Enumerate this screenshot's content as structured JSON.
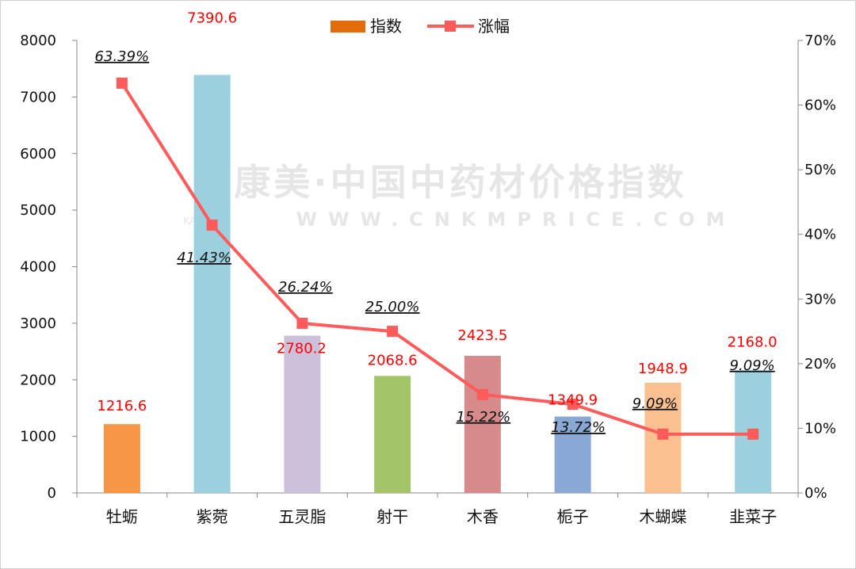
{
  "watermark": {
    "brand": "康美·中国中药材价格指数",
    "site": "WWW.CNKMPRICE.COM",
    "sub": "KANGMEI"
  },
  "chart_data": {
    "type": "bar",
    "categories": [
      "牡蛎",
      "紫菀",
      "五灵脂",
      "射干",
      "木香",
      "栀子",
      "木蝴蝶",
      "韭菜子"
    ],
    "series": [
      {
        "name": "指数",
        "type": "bar",
        "axis": "left",
        "values": [
          1216.6,
          7390.6,
          2780.2,
          2068.6,
          2423.5,
          1349.9,
          1948.9,
          2168.0
        ],
        "value_labels": [
          "1216.6",
          "7390.6",
          "2780.2",
          "2068.6",
          "2423.5",
          "1349.9",
          "1948.9",
          "2168.0"
        ],
        "colors": [
          "#f79646",
          "#9dd0de",
          "#ccc0da",
          "#a4c46a",
          "#d68a8a",
          "#8aa8d4",
          "#fac090",
          "#9dd0de"
        ],
        "legend_color": "#e36c0a",
        "label_color": "#ff0000"
      },
      {
        "name": "涨幅",
        "type": "line",
        "axis": "right",
        "values": [
          63.39,
          41.43,
          26.24,
          25.0,
          15.22,
          13.72,
          9.09,
          9.09
        ],
        "value_labels": [
          "63.39%",
          "41.43%",
          "26.24%",
          "25.00%",
          "15.22%",
          "13.72%",
          "9.09%",
          "9.09%"
        ],
        "color": "#ff5b5b"
      }
    ],
    "y_left": {
      "min": 0,
      "max": 8000,
      "ticks": [
        "0",
        "1000",
        "2000",
        "3000",
        "4000",
        "5000",
        "6000",
        "7000",
        "8000"
      ]
    },
    "y_right": {
      "min": 0,
      "max": 70,
      "ticks": [
        "0%",
        "10%",
        "20%",
        "30%",
        "40%",
        "50%",
        "60%",
        "70%"
      ]
    },
    "legend": "top-center",
    "grid": false
  }
}
